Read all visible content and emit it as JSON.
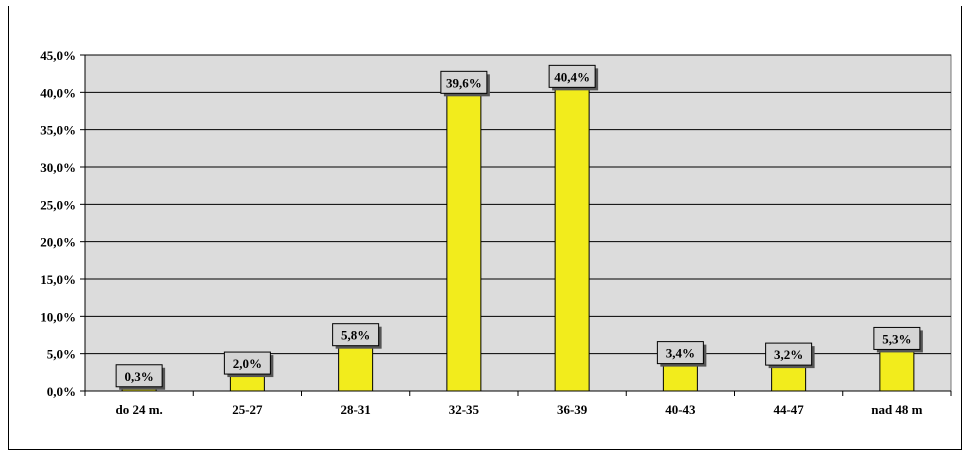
{
  "chart_data": {
    "type": "bar",
    "categories": [
      "do 24 m.",
      "25-27",
      "28-31",
      "32-35",
      "36-39",
      "40-43",
      "44-47",
      "nad 48 m"
    ],
    "values": [
      0.3,
      2.0,
      5.8,
      39.6,
      40.4,
      3.4,
      3.2,
      5.3
    ],
    "data_labels": [
      "0,3%",
      "2,0%",
      "5,8%",
      "39,6%",
      "40,4%",
      "3,4%",
      "3,2%",
      "5,3%"
    ],
    "y_ticks": [
      0,
      5,
      10,
      15,
      20,
      25,
      30,
      35,
      40,
      45
    ],
    "y_tick_labels": [
      "0,0%",
      "5,0%",
      "10,0%",
      "15,0%",
      "20,0%",
      "25,0%",
      "30,0%",
      "35,0%",
      "40,0%",
      "45,0%"
    ],
    "ylim": [
      0,
      45
    ],
    "grid": true,
    "legend": "none",
    "title": "",
    "xlabel": "",
    "ylabel": ""
  },
  "colors": {
    "plot_background": "#dcdcdc",
    "bar_fill": "#f2ec1c",
    "label_box": "#d4d4d4",
    "label_shadow": "#555555"
  }
}
